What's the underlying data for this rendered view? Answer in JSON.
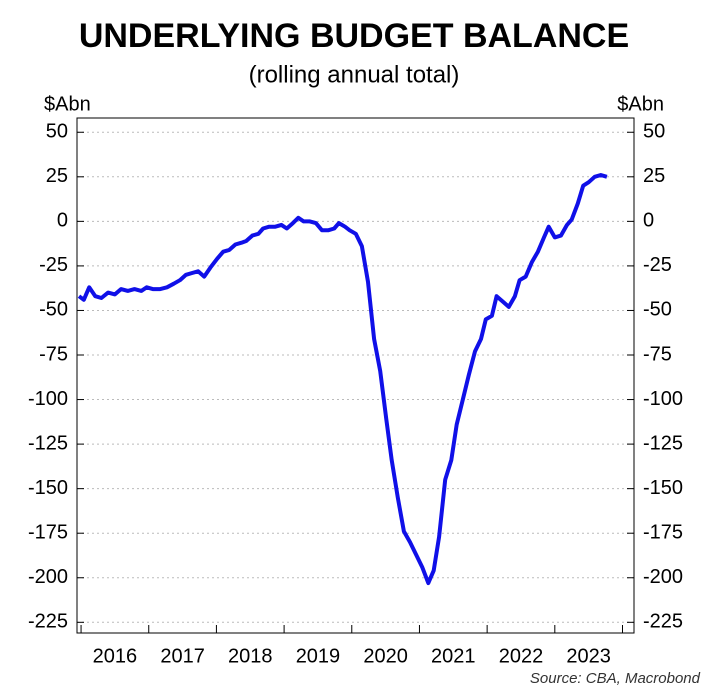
{
  "chart_data": {
    "type": "line",
    "title": "UNDERLYING BUDGET BALANCE",
    "subtitle": "(rolling annual total)",
    "y_label": "$Abn",
    "y2_label": "$Abn",
    "source": "Source: CBA, Macrobond",
    "grid": true,
    "xlim": [
      2015.94,
      2024.17
    ],
    "xticks": [
      {
        "value": 2016.5,
        "label": "2016"
      },
      {
        "value": 2017.5,
        "label": "2017"
      },
      {
        "value": 2018.5,
        "label": "2018"
      },
      {
        "value": 2019.5,
        "label": "2019"
      },
      {
        "value": 2020.5,
        "label": "2020"
      },
      {
        "value": 2021.5,
        "label": "2021"
      },
      {
        "value": 2022.5,
        "label": "2022"
      },
      {
        "value": 2023.5,
        "label": "2023"
      }
    ],
    "ylim": [
      -231,
      58
    ],
    "yticks": [
      50,
      25,
      0,
      -25,
      -50,
      -75,
      -100,
      -125,
      -150,
      -175,
      -200,
      -225
    ],
    "y2lim": [
      -231,
      58
    ],
    "y2ticks": [
      50,
      25,
      0,
      -25,
      -50,
      -75,
      -100,
      -125,
      -150,
      -175,
      -200,
      -225
    ],
    "series": [
      {
        "name": "Underlying budget balance",
        "color": "#1010e8",
        "x": [
          2015.97,
          2016.04,
          2016.12,
          2016.21,
          2016.3,
          2016.4,
          2016.5,
          2016.59,
          2016.69,
          2016.79,
          2016.89,
          2016.97,
          2017.06,
          2017.17,
          2017.27,
          2017.37,
          2017.46,
          2017.55,
          2017.64,
          2017.73,
          2017.82,
          2017.91,
          2018.01,
          2018.1,
          2018.19,
          2018.28,
          2018.37,
          2018.44,
          2018.53,
          2018.62,
          2018.69,
          2018.78,
          2018.87,
          2018.96,
          2019.04,
          2019.13,
          2019.21,
          2019.29,
          2019.38,
          2019.47,
          2019.56,
          2019.65,
          2019.74,
          2019.81,
          2019.9,
          2019.97,
          2020.06,
          2020.15,
          2020.24,
          2020.33,
          2020.42,
          2020.51,
          2020.59,
          2020.68,
          2020.77,
          2020.86,
          2020.95,
          2021.04,
          2021.13,
          2021.21,
          2021.29,
          2021.38,
          2021.47,
          2021.55,
          2021.64,
          2021.73,
          2021.82,
          2021.91,
          2021.98,
          2022.07,
          2022.14,
          2022.23,
          2022.32,
          2022.41,
          2022.48,
          2022.57,
          2022.66,
          2022.75,
          2022.84,
          2022.91,
          2023.0,
          2023.09,
          2023.18,
          2023.25,
          2023.34,
          2023.42,
          2023.5,
          2023.59,
          2023.68,
          2023.77
        ],
        "values": [
          -42,
          -44,
          -37,
          -42,
          -43,
          -40,
          -41,
          -38,
          -39,
          -38,
          -39,
          -37,
          -38,
          -38,
          -37,
          -35,
          -33,
          -30,
          -29,
          -28,
          -31,
          -26,
          -21,
          -17,
          -16,
          -13,
          -12,
          -11,
          -8,
          -7,
          -4,
          -3,
          -3,
          -2,
          -4,
          -1,
          2,
          0,
          0,
          -1,
          -5,
          -5,
          -4,
          -1,
          -3,
          -5,
          -7,
          -14,
          -34,
          -66,
          -84,
          -111,
          -134,
          -155,
          -174,
          -180,
          -187,
          -194,
          -203,
          -196,
          -177,
          -145,
          -134,
          -114,
          -100,
          -86,
          -73,
          -66,
          -55,
          -53,
          -42,
          -45,
          -48,
          -42,
          -33,
          -31,
          -23,
          -17,
          -9,
          -3,
          -9,
          -8,
          -2,
          1,
          10,
          20,
          22,
          25,
          26,
          25
        ]
      }
    ]
  }
}
